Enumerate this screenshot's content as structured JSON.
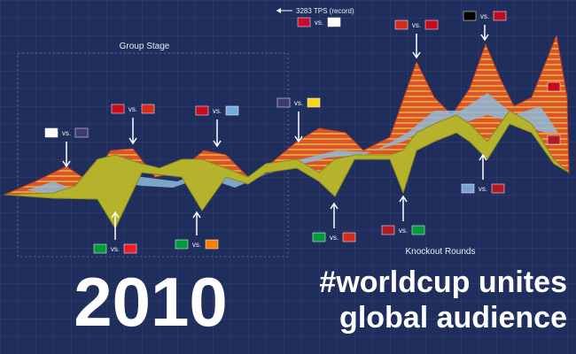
{
  "header": {
    "record": "3283 TPS (record)"
  },
  "stages": {
    "group": "Group Stage",
    "knockout": "Knockout Rounds"
  },
  "matchups": [
    {
      "label": "vs."
    },
    {
      "label": "vs."
    },
    {
      "label": "vs."
    },
    {
      "label": "vs."
    },
    {
      "label": "vs."
    },
    {
      "label": "vs."
    },
    {
      "label": "vs."
    },
    {
      "label": "vs."
    },
    {
      "label": "vs."
    },
    {
      "label": "vs."
    },
    {
      "label": "vs."
    },
    {
      "label": "vs."
    }
  ],
  "headline": {
    "year": "2010",
    "line1": "#worldcup unites",
    "line2": "global audience"
  }
}
